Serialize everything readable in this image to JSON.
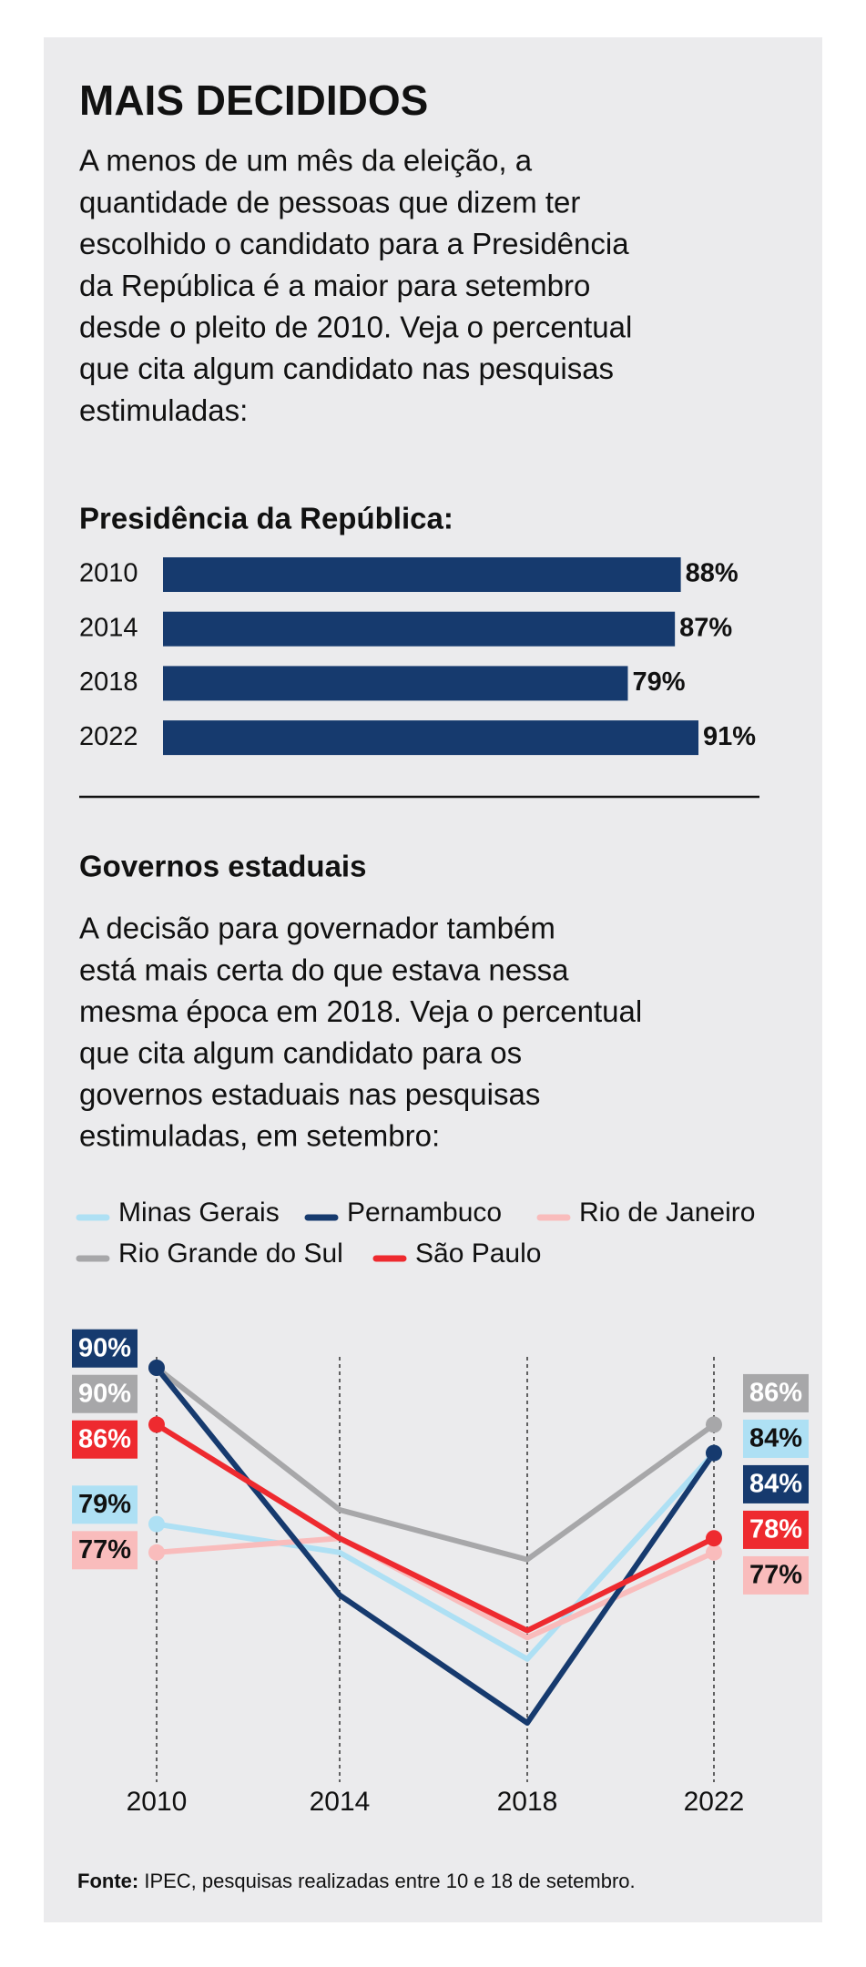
{
  "header": {
    "title": "MAIS DECIDIDOS",
    "intro": [
      "A menos de um mês da eleição, a",
      "quantidade de pessoas que dizem ter",
      "escolhido o candidato para a Presidência",
      "da República é a maior para setembro",
      "desde o pleito de 2010. Veja o percentual",
      "que cita algum candidato nas pesquisas",
      "estimuladas:"
    ]
  },
  "chart_data": [
    {
      "type": "hbar",
      "title": "Presidência da República:",
      "categories": [
        "2010",
        "2014",
        "2018",
        "2022"
      ],
      "values": [
        88,
        87,
        79,
        91
      ],
      "value_labels": [
        "88%",
        "87%",
        "79%",
        "91%"
      ],
      "color": "#163a6e"
    },
    {
      "type": "line",
      "title": "Governos estaduais",
      "subtitle": [
        "A decisão para governador também",
        "está mais certa do que estava nessa",
        "mesma época em 2018. Veja o percentual",
        "que cita algum candidato para os",
        "governos estaduais nas pesquisas",
        "estimuladas, em setembro:"
      ],
      "categories": [
        "2010",
        "2014",
        "2018",
        "2022"
      ],
      "series": [
        {
          "name": "Minas Gerais",
          "color": "#aee0f4",
          "label_text": "#111",
          "values": [
            79,
            77,
            69.5,
            84
          ],
          "value_labels": [
            "79%",
            null,
            null,
            "84%"
          ]
        },
        {
          "name": "Pernambuco",
          "color": "#163a6e",
          "label_text": "#fff",
          "values": [
            90,
            74,
            65,
            84
          ],
          "value_labels": [
            "90%",
            null,
            null,
            "84%"
          ]
        },
        {
          "name": "Rio de Janeiro",
          "color": "#f9bcbc",
          "label_text": "#111",
          "values": [
            77,
            78,
            71,
            77
          ],
          "value_labels": [
            "77%",
            null,
            null,
            "77%"
          ]
        },
        {
          "name": "Rio Grande do Sul",
          "color": "#a7a7a9",
          "label_text": "#fff",
          "values": [
            90,
            80,
            76.5,
            86
          ],
          "value_labels": [
            "90%",
            null,
            null,
            "86%"
          ]
        },
        {
          "name": "São Paulo",
          "color": "#ee2a2f",
          "label_text": "#fff",
          "values": [
            86,
            78,
            71.5,
            78
          ],
          "value_labels": [
            "86%",
            null,
            null,
            "78%"
          ]
        }
      ]
    }
  ],
  "footer": {
    "label": "Fonte:",
    "text": "IPEC, pesquisas realizadas entre 10 e 18 de setembro."
  }
}
